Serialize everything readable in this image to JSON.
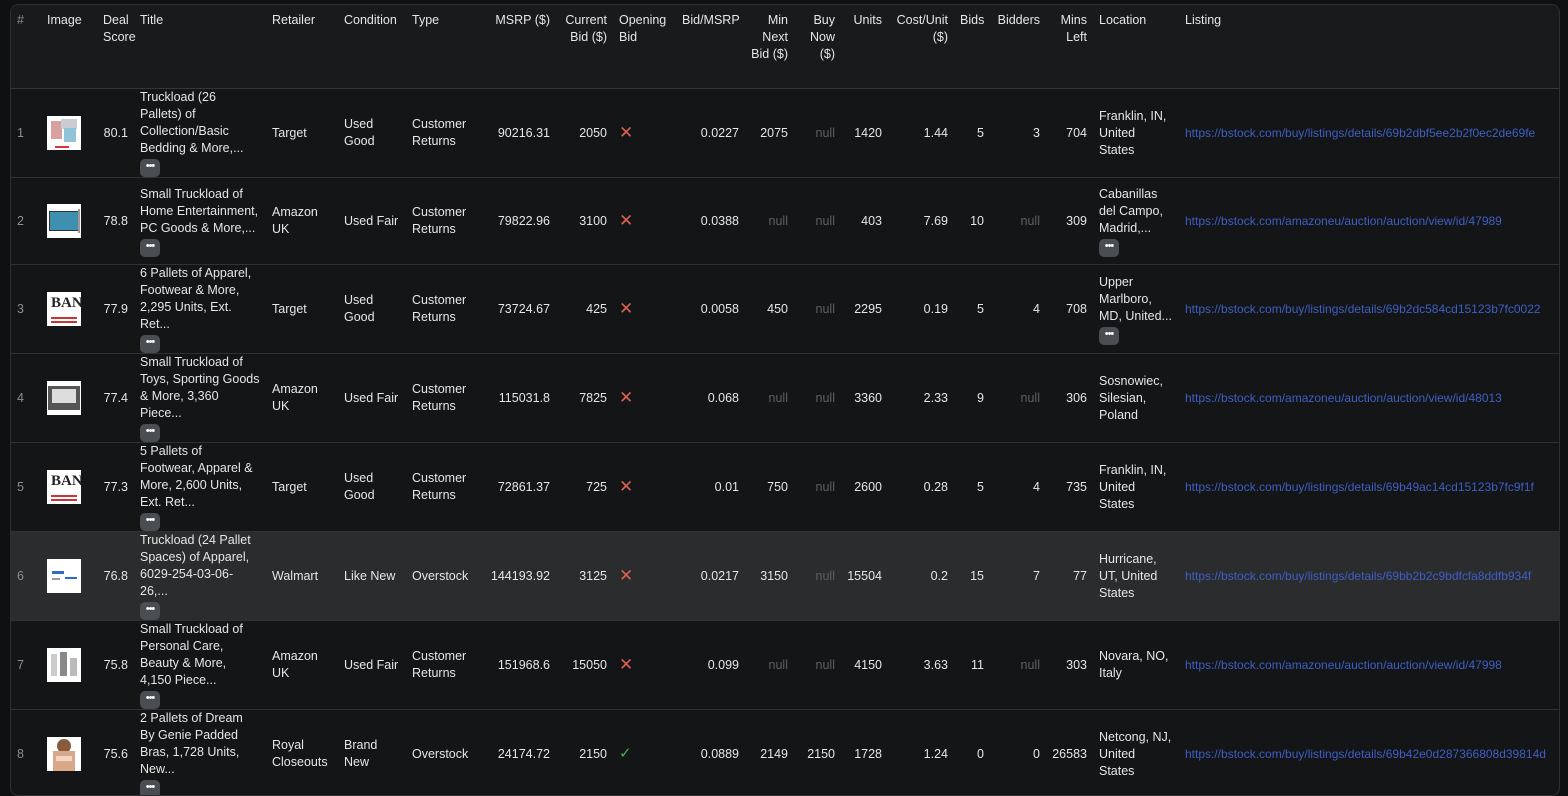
{
  "columns": [
    "#",
    "Image",
    "Deal Score",
    "Title",
    "Retailer",
    "Condition",
    "Type",
    "MSRP ($)",
    "Current Bid ($)",
    "Opening Bid",
    "Bid/MSRP",
    "Min Next Bid ($)",
    "Buy Now ($)",
    "Units",
    "Cost/Unit ($)",
    "Bids",
    "Bidders",
    "Mins Left",
    "Location",
    "Listing"
  ],
  "more_label": "•••",
  "rows": [
    {
      "n": "1",
      "score": "80.1",
      "title": "Truckload (26 Pallets) of Collection/Basic Bedding & More,...",
      "retailer": "Target",
      "condition": "Used Good",
      "type": "Customer Returns",
      "msrp": "90216.31",
      "bid": "2050",
      "opening": "no",
      "bid_msrp": "0.0227",
      "min_next": "2075",
      "buy_now": "null",
      "units": "1420",
      "cpu": "1.44",
      "bids": "5",
      "bidders": "3",
      "mins": "704",
      "location": "Franklin, IN, United States",
      "loc_more": false,
      "listing": "https://bstock.com/buy/listings/details/69b2dbf5ee2b2f0ec2de69fe",
      "thumb": "bedding"
    },
    {
      "n": "2",
      "score": "78.8",
      "title": "Small Truckload of Home Entertainment, PC Goods & More,...",
      "retailer": "Amazon UK",
      "condition": "Used Fair",
      "type": "Customer Returns",
      "msrp": "79822.96",
      "bid": "3100",
      "opening": "no",
      "bid_msrp": "0.0388",
      "min_next": "null",
      "buy_now": "null",
      "units": "403",
      "cpu": "7.69",
      "bids": "10",
      "bidders": "null",
      "mins": "309",
      "location": "Cabanillas del Campo, Madrid,...",
      "loc_more": true,
      "listing": "https://bstock.com/amazoneu/auction/auction/view/id/47989",
      "thumb": "tv"
    },
    {
      "n": "3",
      "score": "77.9",
      "title": "6 Pallets of Apparel, Footwear & More, 2,295 Units, Ext. Ret...",
      "retailer": "Target",
      "condition": "Used Good",
      "type": "Customer Returns",
      "msrp": "73724.67",
      "bid": "425",
      "opening": "no",
      "bid_msrp": "0.0058",
      "min_next": "450",
      "buy_now": "null",
      "units": "2295",
      "cpu": "0.19",
      "bids": "5",
      "bidders": "4",
      "mins": "708",
      "location": "Upper Marlboro, MD, United...",
      "loc_more": true,
      "listing": "https://bstock.com/buy/listings/details/69b2dc584cd15123b7fc0022",
      "thumb": "logo"
    },
    {
      "n": "4",
      "score": "77.4",
      "title": "Small Truckload of Toys, Sporting Goods & More, 3,360 Piece...",
      "retailer": "Amazon UK",
      "condition": "Used Fair",
      "type": "Customer Returns",
      "msrp": "115031.8",
      "bid": "7825",
      "opening": "no",
      "bid_msrp": "0.068",
      "min_next": "null",
      "buy_now": "null",
      "units": "3360",
      "cpu": "2.33",
      "bids": "9",
      "bidders": "null",
      "mins": "306",
      "location": "Sosnowiec, Silesian, Poland",
      "loc_more": false,
      "listing": "https://bstock.com/amazoneu/auction/auction/view/id/48013",
      "thumb": "box"
    },
    {
      "n": "5",
      "score": "77.3",
      "title": "5 Pallets of Footwear, Apparel & More, 2,600 Units, Ext. Ret...",
      "retailer": "Target",
      "condition": "Used Good",
      "type": "Customer Returns",
      "msrp": "72861.37",
      "bid": "725",
      "opening": "no",
      "bid_msrp": "0.01",
      "min_next": "750",
      "buy_now": "null",
      "units": "2600",
      "cpu": "0.28",
      "bids": "5",
      "bidders": "4",
      "mins": "735",
      "location": "Franklin, IN, United States",
      "loc_more": false,
      "listing": "https://bstock.com/buy/listings/details/69b49ac14cd15123b7fc9f1f",
      "thumb": "logo"
    },
    {
      "n": "6",
      "score": "76.8",
      "title": "Truckload (24 Pallet Spaces) of Apparel, 6029-254-03-06-26,...",
      "retailer": "Walmart",
      "condition": "Like New",
      "type": "Overstock",
      "msrp": "144193.92",
      "bid": "3125",
      "opening": "no",
      "bid_msrp": "0.0217",
      "min_next": "3150",
      "buy_now": "null",
      "units": "15504",
      "cpu": "0.2",
      "bids": "15",
      "bidders": "7",
      "mins": "77",
      "location": "Hurricane, UT, United States",
      "loc_more": false,
      "listing": "https://bstock.com/buy/listings/details/69bb2b2c9bdfcfa8ddfb934f",
      "thumb": "walmart"
    },
    {
      "n": "7",
      "score": "75.8",
      "title": "Small Truckload of Personal Care, Beauty & More, 4,150 Piece...",
      "retailer": "Amazon UK",
      "condition": "Used Fair",
      "type": "Customer Returns",
      "msrp": "151968.6",
      "bid": "15050",
      "opening": "no",
      "bid_msrp": "0.099",
      "min_next": "null",
      "buy_now": "null",
      "units": "4150",
      "cpu": "3.63",
      "bids": "11",
      "bidders": "null",
      "mins": "303",
      "location": "Novara, NO, Italy",
      "loc_more": false,
      "listing": "https://bstock.com/amazoneu/auction/auction/view/id/47998",
      "thumb": "care"
    },
    {
      "n": "8",
      "score": "75.6",
      "title": "2 Pallets of Dream By Genie Padded Bras, 1,728 Units, New...",
      "retailer": "Royal Closeouts",
      "condition": "Brand New",
      "type": "Overstock",
      "msrp": "24174.72",
      "bid": "2150",
      "opening": "yes",
      "bid_msrp": "0.0889",
      "min_next": "2149",
      "buy_now": "2150",
      "units": "1728",
      "cpu": "1.24",
      "bids": "0",
      "bidders": "0",
      "mins": "26583",
      "location": "Netcong, NJ, United States",
      "loc_more": false,
      "listing": "https://bstock.com/buy/listings/details/69b42e0d287366808d39814d",
      "thumb": "person"
    }
  ],
  "colors": {
    "link": "#3f5fc4",
    "cross": "#e0604f",
    "check": "#43b05c",
    "hover_row": "#2a2c2e"
  }
}
